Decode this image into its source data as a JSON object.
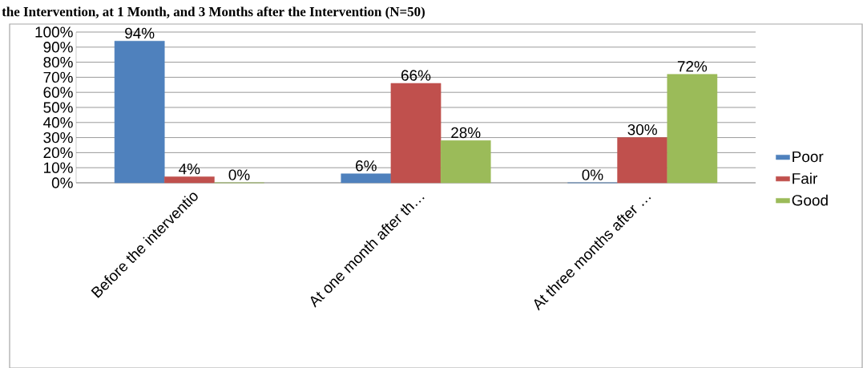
{
  "chart_data": {
    "type": "bar",
    "title": "the Intervention, at 1 Month, and 3 Months after the Intervention (N=50)",
    "categories": [
      "Before the interventio",
      "At one month after th…",
      "At three months after …"
    ],
    "series": [
      {
        "name": "Poor",
        "color": "#4f81bd",
        "values": [
          94,
          6,
          0
        ],
        "value_labels": [
          "94%",
          "6%",
          "0%"
        ]
      },
      {
        "name": "Fair",
        "color": "#c0504d",
        "values": [
          4,
          66,
          30
        ],
        "value_labels": [
          "4%",
          "66%",
          "30%"
        ]
      },
      {
        "name": "Good",
        "color": "#9bbb59",
        "values": [
          0,
          28,
          72
        ],
        "value_labels": [
          "0%",
          "28%",
          "72%"
        ]
      }
    ],
    "ylim": [
      0,
      100
    ],
    "yticks": [
      {
        "value": 0,
        "label": "0%"
      },
      {
        "value": 10,
        "label": "10%"
      },
      {
        "value": 20,
        "label": "20%"
      },
      {
        "value": 30,
        "label": "30%"
      },
      {
        "value": 40,
        "label": "40%"
      },
      {
        "value": 50,
        "label": "50%"
      },
      {
        "value": 60,
        "label": "60%"
      },
      {
        "value": 70,
        "label": "70%"
      },
      {
        "value": 80,
        "label": "80%"
      },
      {
        "value": 90,
        "label": "90%"
      },
      {
        "value": 100,
        "label": "100%"
      }
    ],
    "grid": "y",
    "legend": "right"
  }
}
